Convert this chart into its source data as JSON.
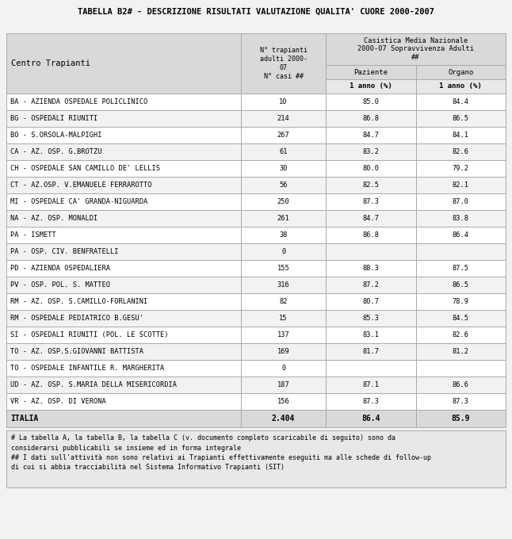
{
  "title": "TABELLA B2# - DESCRIZIONE RISULTATI VALUTAZIONE QUALITA' CUORE 2000-2007",
  "rows": [
    [
      "BA - AZIENDA OSPEDALE POLICLINICO",
      "10",
      "85.0",
      "84.4"
    ],
    [
      "BG - OSPEDALI RIUNITI",
      "214",
      "86.8",
      "86.5"
    ],
    [
      "BO - S.ORSOLA-MALPIGHI",
      "267",
      "84.7",
      "84.1"
    ],
    [
      "CA - AZ. OSP. G.BROTZU",
      "61",
      "83.2",
      "82.6"
    ],
    [
      "CH - OSPEDALE SAN CAMILLO DE' LELLIS",
      "30",
      "80.0",
      "79.2"
    ],
    [
      "CT - AZ.OSP. V.EMANUELE FERRAROTTO",
      "56",
      "82.5",
      "82.1"
    ],
    [
      "MI - OSPEDALE CA' GRANDA-NIGUARDA",
      "250",
      "87.3",
      "87.0"
    ],
    [
      "NA - AZ. OSP. MONALDI",
      "261",
      "84.7",
      "83.8"
    ],
    [
      "PA - ISMETT",
      "38",
      "86.8",
      "86.4"
    ],
    [
      "PA - OSP. CIV. BENFRATELLI",
      "0",
      "",
      ""
    ],
    [
      "PD - AZIENDA OSPEDALIERA",
      "155",
      "88.3",
      "87.5"
    ],
    [
      "PV - OSP. POL. S. MATTEO",
      "316",
      "87.2",
      "86.5"
    ],
    [
      "RM - AZ. OSP. S.CAMILLO-FORLANINI",
      "82",
      "80.7",
      "78.9"
    ],
    [
      "RM - OSPEDALE PEDIATRICO B.GESU'",
      "15",
      "85.3",
      "84.5"
    ],
    [
      "SI - OSPEDALI RIUNITI (POL. LE SCOTTE)",
      "137",
      "83.1",
      "82.6"
    ],
    [
      "TO - AZ. OSP.S.GIOVANNI BATTISTA",
      "169",
      "81.7",
      "81.2"
    ],
    [
      "TO - OSPEDALE INFANTILE R. MARGHERITA",
      "0",
      "",
      ""
    ],
    [
      "UD - AZ. OSP. S.MARIA DELLA MISERICORDIA",
      "187",
      "87.1",
      "86.6"
    ],
    [
      "VR - AZ. OSP. DI VERONA",
      "156",
      "87.3",
      "87.3"
    ]
  ],
  "footer_row": [
    "ITALIA",
    "2.404",
    "86.4",
    "85.9"
  ],
  "footnote_lines": [
    "# La tabella A, la tabella B, la tabella C (v. documento completo scaricabile di seguito) sono da",
    "considerarsi pubblicabili se insieme ed in forma integrale",
    "## I dati sull'attività non sono relativi ai Trapianti effettivamente eseguiti ma alle schede di follow-up",
    "di cui si abbia tracciabilità nel Sistema Informativo Trapianti (SIT)"
  ],
  "bg_color": "#f2f2f2",
  "header_bg": "#d9d9d9",
  "subheader_bg": "#e8e8e8",
  "row_bg_white": "#ffffff",
  "row_bg_gray": "#f2f2f2",
  "footer_bg": "#d9d9d9",
  "border_color": "#aaaaaa",
  "text_color": "#000000"
}
